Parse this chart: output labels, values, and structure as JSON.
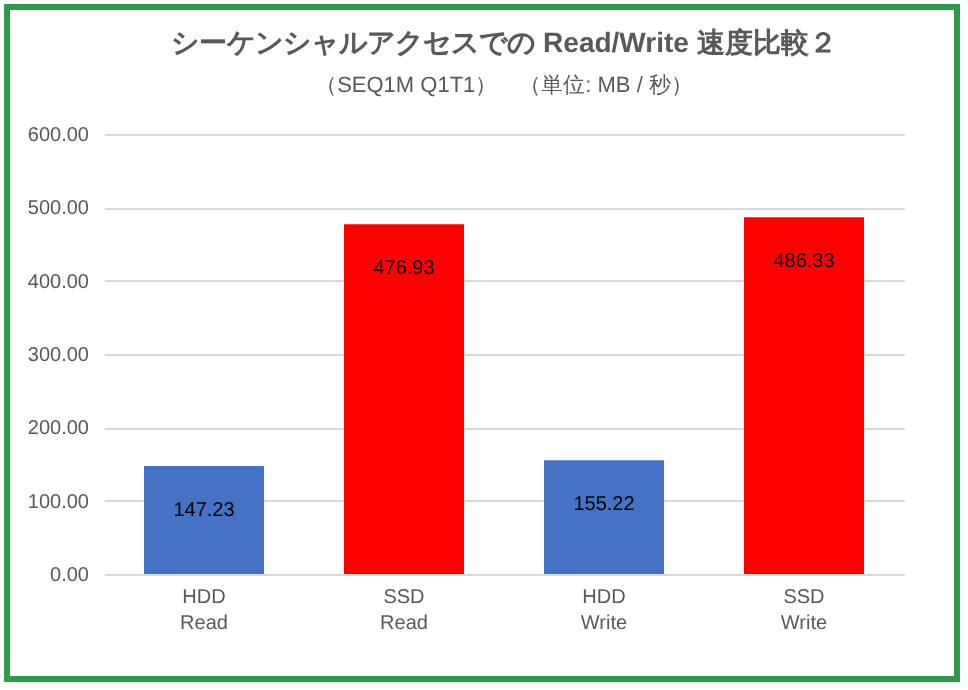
{
  "chart_data": {
    "type": "bar",
    "title": "シーケンシャルアクセスでの Read/Write 速度比較２",
    "subtitle": "（SEQ1M Q1T1）　（単位: MB / 秒）",
    "categories": [
      "HDD\nRead",
      "SSD\nRead",
      "HDD\nWrite",
      "SSD\nWrite"
    ],
    "values": [
      147.23,
      476.93,
      155.22,
      486.33
    ],
    "colors": [
      "#4472c4",
      "#ff0000",
      "#4472c4",
      "#ff0000"
    ],
    "ylim": [
      0,
      600
    ],
    "yticks": [
      {
        "value": 0,
        "label": "0.00"
      },
      {
        "value": 100,
        "label": "100.00"
      },
      {
        "value": 200,
        "label": "200.00"
      },
      {
        "value": 300,
        "label": "300.00"
      },
      {
        "value": 400,
        "label": "400.00"
      },
      {
        "value": 500,
        "label": "500.00"
      },
      {
        "value": 600,
        "label": "600.00"
      }
    ],
    "grid": "y",
    "data_labels": true
  }
}
